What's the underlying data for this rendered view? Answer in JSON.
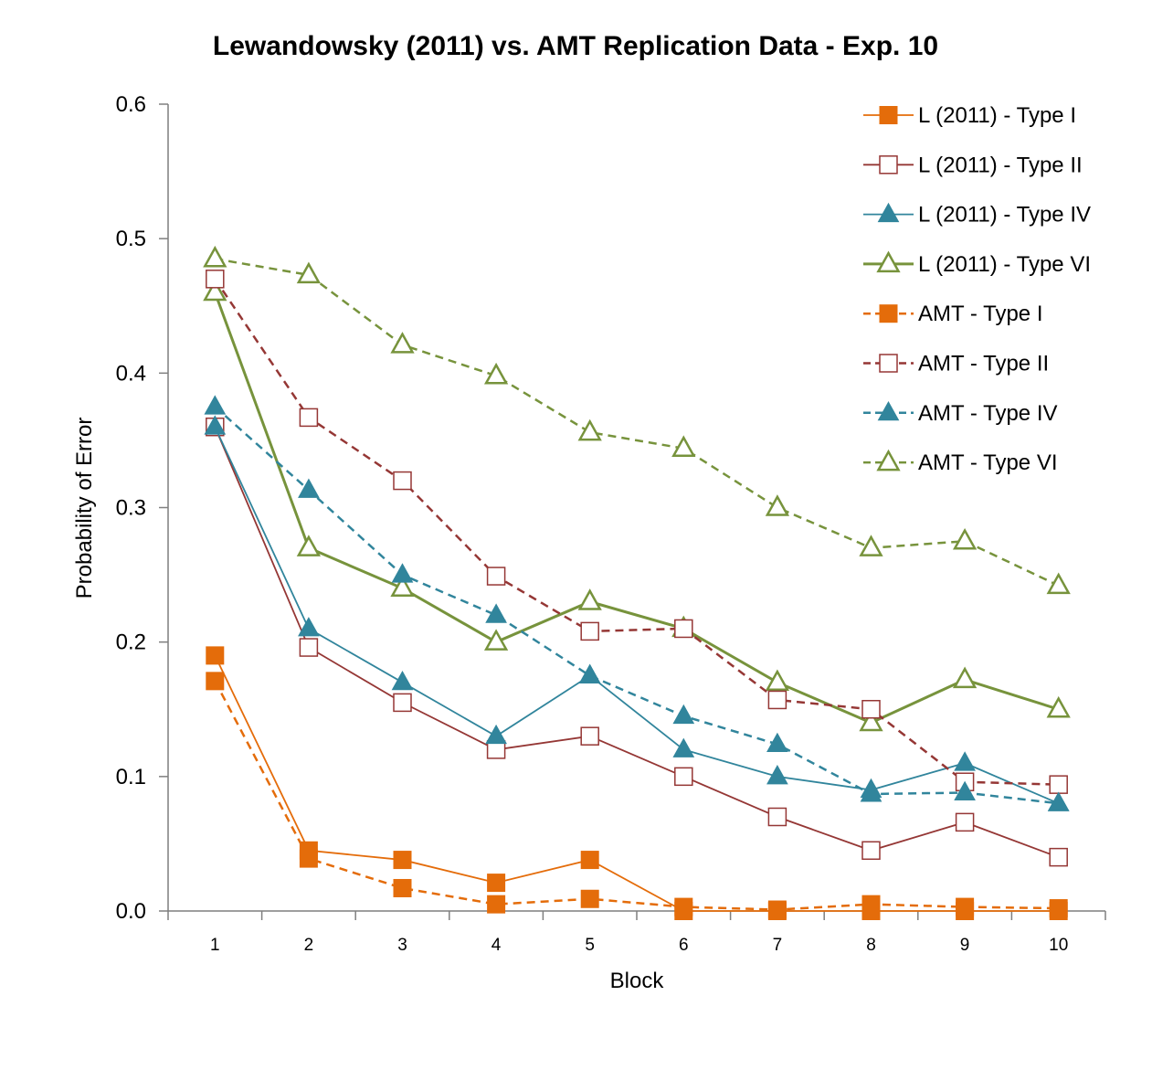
{
  "chart_data": {
    "type": "line",
    "title": "Lewandowsky (2011) vs. AMT Replication Data - Exp. 10",
    "xlabel": "Block",
    "ylabel": "Probability of Error",
    "x": [
      1,
      2,
      3,
      4,
      5,
      6,
      7,
      8,
      9,
      10
    ],
    "x_tick_labels": [
      "1",
      "2",
      "3",
      "4",
      "5",
      "6",
      "7",
      "8",
      "9",
      "10"
    ],
    "ylim": [
      0,
      0.6
    ],
    "y_ticks": [
      0,
      0.1,
      0.2,
      0.3,
      0.4,
      0.5,
      0.6
    ],
    "y_tick_labels": [
      "0.0",
      "0.1",
      "0.2",
      "0.3",
      "0.4",
      "0.5",
      "0.6"
    ],
    "grid": false,
    "legend_position": "top-right",
    "series": [
      {
        "name": "L (2011) - Type I",
        "color": "#e46c0a",
        "dash": "solid",
        "marker": "square",
        "filled": true,
        "values": [
          0.19,
          0.045,
          0.038,
          0.021,
          0.038,
          0.0,
          0.0,
          0.0,
          0.0,
          0.0
        ]
      },
      {
        "name": "L (2011) - Type II",
        "color": "#953735",
        "dash": "solid",
        "marker": "square",
        "filled": false,
        "values": [
          0.36,
          0.196,
          0.155,
          0.12,
          0.13,
          0.1,
          0.07,
          0.045,
          0.066,
          0.04
        ]
      },
      {
        "name": "L (2011) - Type IV",
        "color": "#31859c",
        "dash": "solid",
        "marker": "triangle",
        "filled": true,
        "values": [
          0.36,
          0.21,
          0.17,
          0.13,
          0.175,
          0.12,
          0.1,
          0.09,
          0.11,
          0.08
        ]
      },
      {
        "name": "L (2011) - Type VI",
        "color": "#77933c",
        "dash": "solid",
        "marker": "triangle",
        "filled": false,
        "values": [
          0.46,
          0.27,
          0.24,
          0.2,
          0.23,
          0.21,
          0.17,
          0.14,
          0.172,
          0.15
        ]
      },
      {
        "name": "AMT - Type I",
        "color": "#e46c0a",
        "dash": "dashed",
        "marker": "square",
        "filled": true,
        "values": [
          0.171,
          0.039,
          0.017,
          0.005,
          0.009,
          0.003,
          0.001,
          0.005,
          0.003,
          0.002
        ]
      },
      {
        "name": "AMT - Type II",
        "color": "#953735",
        "dash": "dashed",
        "marker": "square",
        "filled": false,
        "values": [
          0.47,
          0.367,
          0.32,
          0.249,
          0.208,
          0.21,
          0.157,
          0.15,
          0.096,
          0.094
        ]
      },
      {
        "name": "AMT - Type IV",
        "color": "#31859c",
        "dash": "dashed",
        "marker": "triangle",
        "filled": true,
        "values": [
          0.375,
          0.313,
          0.25,
          0.22,
          0.175,
          0.145,
          0.124,
          0.087,
          0.088,
          0.08
        ]
      },
      {
        "name": "AMT - Type VI",
        "color": "#77933c",
        "dash": "dashed",
        "marker": "triangle",
        "filled": false,
        "values": [
          0.485,
          0.473,
          0.421,
          0.398,
          0.356,
          0.344,
          0.3,
          0.27,
          0.275,
          0.242
        ]
      }
    ]
  }
}
